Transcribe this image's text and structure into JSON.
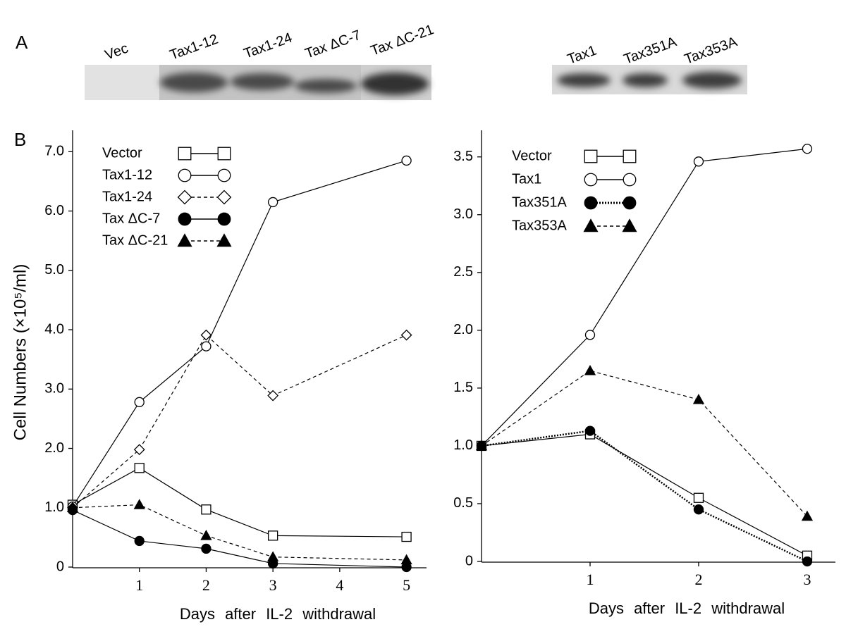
{
  "panel_labels": [
    "A",
    "B"
  ],
  "blots": [
    {
      "lanes": [
        "Vec",
        "Tax1-12",
        "Tax1-24",
        "Tax ΔC-7",
        "Tax ΔC-21"
      ]
    },
    {
      "lanes": [
        "Tax1",
        "Tax351A",
        "Tax353A"
      ]
    }
  ],
  "chart_data": [
    {
      "type": "line",
      "ylabel": "Cell Numbers (×10⁵/ml)",
      "xlabel": "Days after IL-2 withdrawal",
      "x": [
        0,
        1,
        2,
        3,
        5
      ],
      "xlim": [
        0,
        5.3
      ],
      "xticks": [
        1,
        2,
        3,
        4,
        5
      ],
      "ylim": [
        0,
        7.36
      ],
      "yticks": [
        0,
        {
          "value": 1,
          "label": "1.0"
        },
        {
          "value": 2,
          "label": "2.0"
        },
        {
          "value": 3,
          "label": "3.0"
        },
        {
          "value": 4,
          "label": "4.0"
        },
        {
          "value": 5,
          "label": "5.0"
        },
        {
          "value": 6,
          "label": "6.0"
        },
        {
          "value": 7,
          "label": "7.0"
        }
      ],
      "legend": "upper left",
      "series": [
        {
          "name": "Vector",
          "color": "#000000",
          "marker": "square",
          "marker_fill": "white",
          "line_style": "solid",
          "values": [
            1.05,
            1.67,
            0.97,
            0.53,
            0.51
          ]
        },
        {
          "name": "Tax1-12",
          "color": "#000000",
          "marker": "circle",
          "marker_fill": "white",
          "line_style": "solid",
          "values": [
            1.02,
            2.78,
            3.72,
            6.15,
            6.85
          ]
        },
        {
          "name": "Tax1-24",
          "color": "#000000",
          "marker": "diamond",
          "marker_fill": "white",
          "line_style": "dashed",
          "values": [
            1.0,
            1.98,
            3.91,
            2.89,
            3.91
          ]
        },
        {
          "name": "Tax ΔC-7",
          "color": "#000000",
          "marker": "circle",
          "marker_fill": "black",
          "line_style": "solid",
          "values": [
            0.96,
            0.44,
            0.31,
            0.06,
            0
          ]
        },
        {
          "name": "Tax ΔC-21",
          "color": "#000000",
          "marker": "triangle",
          "marker_fill": "black",
          "line_style": "dashed",
          "values": [
            1.0,
            1.05,
            0.53,
            0.17,
            0.12
          ]
        }
      ]
    },
    {
      "type": "line",
      "xlabel": "Days after IL-2 withdrawal",
      "x": [
        0,
        1,
        2,
        3
      ],
      "xlim": [
        0,
        3.26
      ],
      "xticks": [
        1,
        2,
        3
      ],
      "ylim": [
        0,
        3.73
      ],
      "yticks": [
        0,
        0.5,
        {
          "value": 1,
          "label": "1.0"
        },
        1.5,
        {
          "value": 2,
          "label": "2.0"
        },
        2.5,
        {
          "value": 3,
          "label": "3.0"
        },
        3.5
      ],
      "legend": "upper left",
      "series": [
        {
          "name": "Vector",
          "color": "#000000",
          "marker": "square",
          "marker_fill": "white",
          "line_style": "solid",
          "values": [
            1.0,
            1.1,
            0.55,
            0.05
          ]
        },
        {
          "name": "Tax1",
          "color": "#000000",
          "marker": "circle",
          "marker_fill": "white",
          "line_style": "solid",
          "values": [
            1.0,
            1.96,
            3.46,
            3.57
          ]
        },
        {
          "name": "Tax351A",
          "color": "#000000",
          "marker": "circle",
          "marker_fill": "black",
          "line_style": "dotted",
          "values": [
            1.0,
            1.13,
            0.45,
            0.0
          ]
        },
        {
          "name": "Tax353A",
          "color": "#000000",
          "marker": "triangle",
          "marker_fill": "black",
          "line_style": "dashed",
          "values": [
            1.0,
            1.65,
            1.4,
            0.39
          ]
        }
      ]
    }
  ]
}
